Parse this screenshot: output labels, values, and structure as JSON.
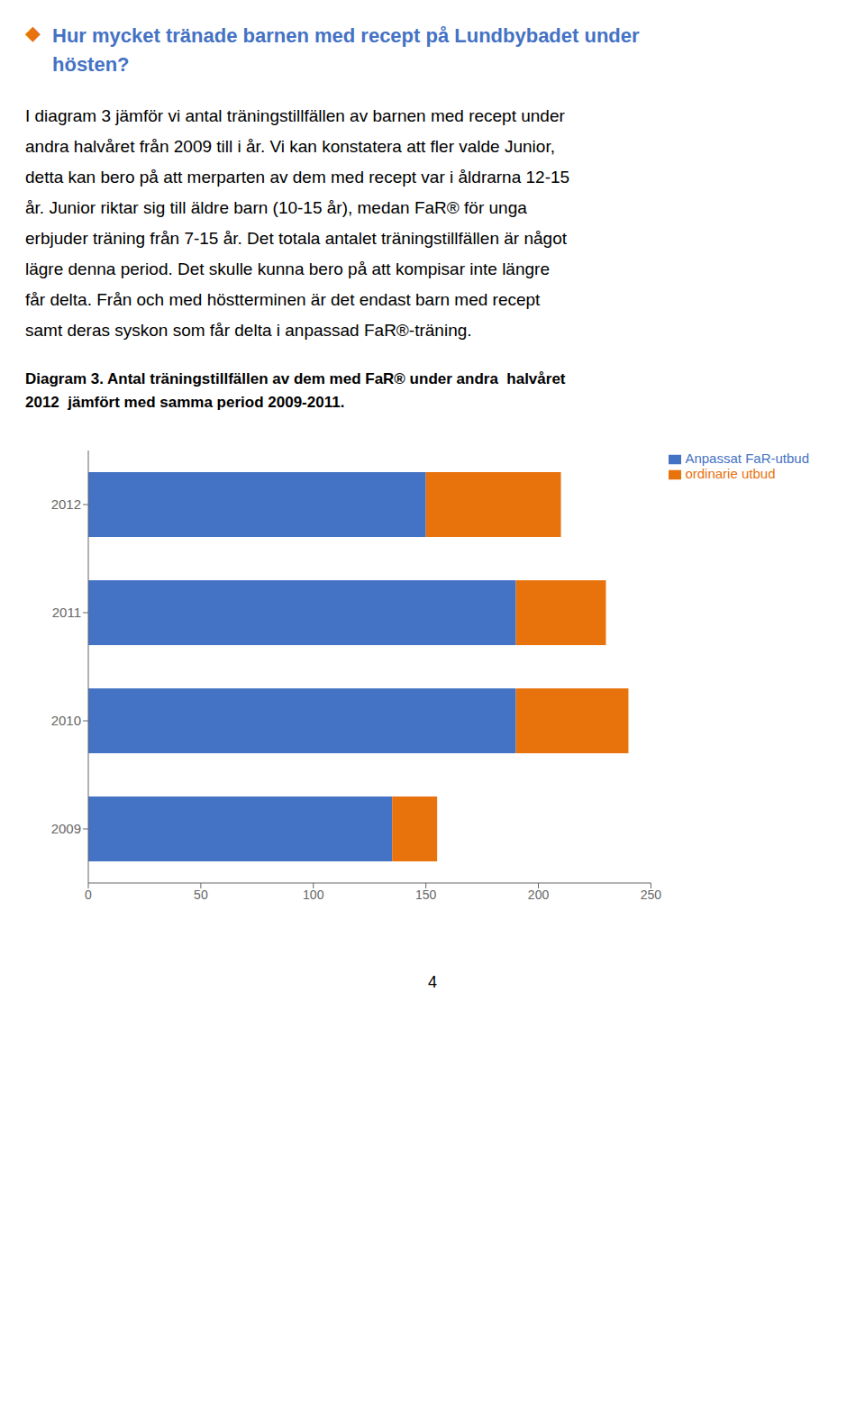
{
  "title": "Hur mycket tränade barnen med recept på Lundbybadet under\nhösten?",
  "subtitle": "Diagram 3. Antal träningstillfällen av dem med FaR® under andra  halvåret\n2012  jämfört med samma period 2009-2011.",
  "annotations": [
    "◆",
    "I diagram 3 jämför vi antal träningstillfällen av barnen med recept under",
    "andra halvåret från 2009 till i år. Vi kan konstatera att fler valde Junior,",
    "detta kan bero på att merparten av dem med recept var i åldrarna 12-15",
    "år. Junior riktar sig till äldre barn (10-15 år), medan FaR® för unga",
    "erbjuder träning från 7-15 år. Det totala antalet träningstillfällen är något",
    "lägre denna period. Det skulle kunna bero på att kompisar inte längre",
    "får delta. Från och med höstterminen är det endast barn med recept",
    "samt deras syskon som får delta i anpassad FaR®-träning.",
    "4"
  ],
  "chart_data": {
    "type": "bar",
    "orientation": "horizontal",
    "stacked": true,
    "categories": [
      "2012",
      "2011",
      "2010",
      "2009"
    ],
    "series": [
      {
        "name": "Anpassat FaR-utbud",
        "color": "#4472C4",
        "values": [
          150,
          190,
          190,
          135
        ]
      },
      {
        "name": "ordinarie utbud",
        "color": "#E8720C",
        "values": [
          60,
          40,
          50,
          20
        ]
      }
    ],
    "xlim": [
      0,
      250
    ],
    "xticks": [
      0,
      50,
      100,
      150,
      200,
      250
    ],
    "grid": false,
    "legend": "upper right"
  }
}
